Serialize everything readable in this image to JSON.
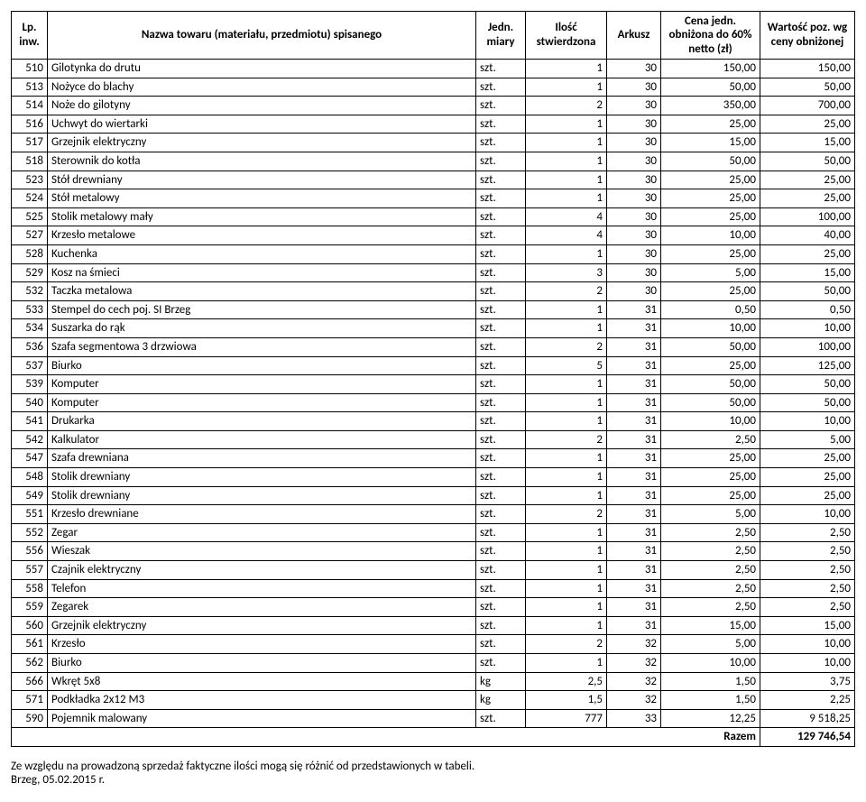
{
  "headers": {
    "lp": "Lp. inw.",
    "name": "Nazwa towaru (materiału, przedmiotu) spisanego",
    "unit": "Jedn. miary",
    "qty": "Ilość stwierdzona",
    "sheet": "Arkusz",
    "price": "Cena jedn. obniżona do 60% netto (zł)",
    "value": "Wartość poz. wg ceny obniżonej"
  },
  "rows": [
    {
      "lp": "510",
      "name": "Gilotynka do drutu",
      "unit": "szt.",
      "qty": "1",
      "sheet": "30",
      "price": "150,00",
      "value": "150,00"
    },
    {
      "lp": "513",
      "name": "Nożyce do blachy",
      "unit": "szt.",
      "qty": "1",
      "sheet": "30",
      "price": "50,00",
      "value": "50,00"
    },
    {
      "lp": "514",
      "name": "Noże do gilotyny",
      "unit": "szt.",
      "qty": "2",
      "sheet": "30",
      "price": "350,00",
      "value": "700,00"
    },
    {
      "lp": "516",
      "name": "Uchwyt do wiertarki",
      "unit": "szt.",
      "qty": "1",
      "sheet": "30",
      "price": "25,00",
      "value": "25,00"
    },
    {
      "lp": "517",
      "name": "Grzejnik elektryczny",
      "unit": "szt.",
      "qty": "1",
      "sheet": "30",
      "price": "15,00",
      "value": "15,00"
    },
    {
      "lp": "518",
      "name": "Sterownik do kotła",
      "unit": "szt.",
      "qty": "1",
      "sheet": "30",
      "price": "50,00",
      "value": "50,00"
    },
    {
      "lp": "523",
      "name": "Stół drewniany",
      "unit": "szt.",
      "qty": "1",
      "sheet": "30",
      "price": "25,00",
      "value": "25,00"
    },
    {
      "lp": "524",
      "name": "Stół metalowy",
      "unit": "szt.",
      "qty": "1",
      "sheet": "30",
      "price": "25,00",
      "value": "25,00"
    },
    {
      "lp": "525",
      "name": "Stolik metalowy mały",
      "unit": "szt.",
      "qty": "4",
      "sheet": "30",
      "price": "25,00",
      "value": "100,00"
    },
    {
      "lp": "527",
      "name": "Krzesło metalowe",
      "unit": "szt.",
      "qty": "4",
      "sheet": "30",
      "price": "10,00",
      "value": "40,00"
    },
    {
      "lp": "528",
      "name": "Kuchenka",
      "unit": "szt.",
      "qty": "1",
      "sheet": "30",
      "price": "25,00",
      "value": "25,00"
    },
    {
      "lp": "529",
      "name": "Kosz na śmieci",
      "unit": "szt.",
      "qty": "3",
      "sheet": "30",
      "price": "5,00",
      "value": "15,00"
    },
    {
      "lp": "532",
      "name": "Taczka metalowa",
      "unit": "szt.",
      "qty": "2",
      "sheet": "30",
      "price": "25,00",
      "value": "50,00"
    },
    {
      "lp": "533",
      "name": "Stempel do cech poj. SI Brzeg",
      "unit": "szt.",
      "qty": "1",
      "sheet": "31",
      "price": "0,50",
      "value": "0,50"
    },
    {
      "lp": "534",
      "name": "Suszarka do rąk",
      "unit": "szt.",
      "qty": "1",
      "sheet": "31",
      "price": "10,00",
      "value": "10,00"
    },
    {
      "lp": "536",
      "name": "Szafa segmentowa 3 drzwiowa",
      "unit": "szt.",
      "qty": "2",
      "sheet": "31",
      "price": "50,00",
      "value": "100,00"
    },
    {
      "lp": "537",
      "name": "Biurko",
      "unit": "szt.",
      "qty": "5",
      "sheet": "31",
      "price": "25,00",
      "value": "125,00"
    },
    {
      "lp": "539",
      "name": "Komputer",
      "unit": "szt.",
      "qty": "1",
      "sheet": "31",
      "price": "50,00",
      "value": "50,00"
    },
    {
      "lp": "540",
      "name": "Komputer",
      "unit": "szt.",
      "qty": "1",
      "sheet": "31",
      "price": "50,00",
      "value": "50,00"
    },
    {
      "lp": "541",
      "name": "Drukarka",
      "unit": "szt.",
      "qty": "1",
      "sheet": "31",
      "price": "10,00",
      "value": "10,00"
    },
    {
      "lp": "542",
      "name": "Kalkulator",
      "unit": "szt.",
      "qty": "2",
      "sheet": "31",
      "price": "2,50",
      "value": "5,00"
    },
    {
      "lp": "547",
      "name": "Szafa drewniana",
      "unit": "szt.",
      "qty": "1",
      "sheet": "31",
      "price": "25,00",
      "value": "25,00"
    },
    {
      "lp": "548",
      "name": "Stolik drewniany",
      "unit": "szt.",
      "qty": "1",
      "sheet": "31",
      "price": "25,00",
      "value": "25,00"
    },
    {
      "lp": "549",
      "name": "Stolik drewniany",
      "unit": "szt.",
      "qty": "1",
      "sheet": "31",
      "price": "25,00",
      "value": "25,00"
    },
    {
      "lp": "551",
      "name": "Krzesło drewniane",
      "unit": "szt.",
      "qty": "2",
      "sheet": "31",
      "price": "5,00",
      "value": "10,00"
    },
    {
      "lp": "552",
      "name": "Zegar",
      "unit": "szt.",
      "qty": "1",
      "sheet": "31",
      "price": "2,50",
      "value": "2,50"
    },
    {
      "lp": "556",
      "name": "Wieszak",
      "unit": "szt.",
      "qty": "1",
      "sheet": "31",
      "price": "2,50",
      "value": "2,50"
    },
    {
      "lp": "557",
      "name": "Czajnik elektryczny",
      "unit": "szt.",
      "qty": "1",
      "sheet": "31",
      "price": "2,50",
      "value": "2,50"
    },
    {
      "lp": "558",
      "name": "Telefon",
      "unit": "szt.",
      "qty": "1",
      "sheet": "31",
      "price": "2,50",
      "value": "2,50"
    },
    {
      "lp": "559",
      "name": "Zegarek",
      "unit": "szt.",
      "qty": "1",
      "sheet": "31",
      "price": "2,50",
      "value": "2,50"
    },
    {
      "lp": "560",
      "name": "Grzejnik elektryczny",
      "unit": "szt.",
      "qty": "1",
      "sheet": "31",
      "price": "15,00",
      "value": "15,00"
    },
    {
      "lp": "561",
      "name": "Krzesło",
      "unit": "szt.",
      "qty": "2",
      "sheet": "32",
      "price": "5,00",
      "value": "10,00"
    },
    {
      "lp": "562",
      "name": "Biurko",
      "unit": "szt.",
      "qty": "1",
      "sheet": "32",
      "price": "10,00",
      "value": "10,00"
    },
    {
      "lp": "566",
      "name": "Wkręt 5x8",
      "unit": "kg",
      "qty": "2,5",
      "sheet": "32",
      "price": "1,50",
      "value": "3,75"
    },
    {
      "lp": "571",
      "name": "Podkładka 2x12 M3",
      "unit": "kg",
      "qty": "1,5",
      "sheet": "32",
      "price": "1,50",
      "value": "2,25"
    },
    {
      "lp": "590",
      "name": "Pojemnik malowany",
      "unit": "szt.",
      "qty": "777",
      "sheet": "33",
      "price": "12,25",
      "value": "9 518,25"
    }
  ],
  "total": {
    "label": "Razem",
    "value": "129 746,54"
  },
  "footnote": "Ze względu na prowadzoną sprzedaż faktyczne ilości mogą się różnić od przedstawionych w tabeli.",
  "footdate": "Brzeg, 05.02.2015 r."
}
